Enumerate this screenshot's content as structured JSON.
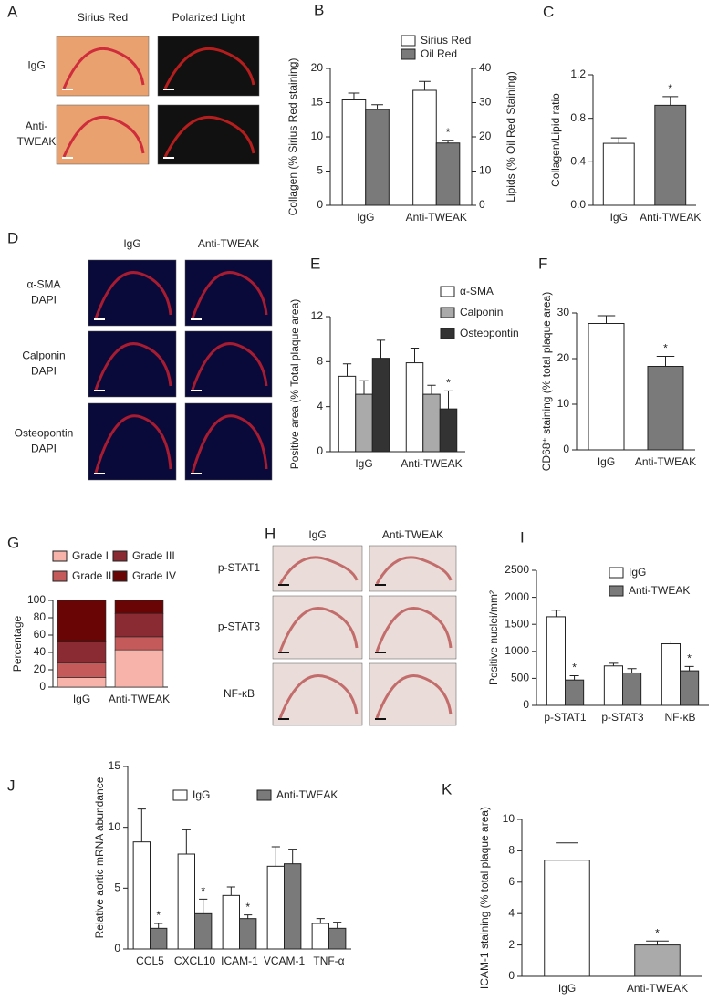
{
  "panel_letters": [
    "A",
    "B",
    "C",
    "D",
    "E",
    "F",
    "G",
    "H",
    "I",
    "J",
    "K"
  ],
  "micrographs_a": {
    "columns": [
      "Sirius  Red",
      "Polarized Light"
    ],
    "rows": [
      [
        "IgG"
      ],
      [
        "Anti-",
        "TWEAK"
      ]
    ]
  },
  "micrographs_d": {
    "columns": [
      "IgG",
      "Anti-TWEAK"
    ],
    "rows": [
      [
        "α-SMA",
        "DAPI"
      ],
      [
        "Calponin",
        "DAPI"
      ],
      [
        "Osteopontin",
        "DAPI"
      ]
    ]
  },
  "micrographs_h": {
    "columns": [
      "IgG",
      "Anti-TWEAK"
    ],
    "rows": [
      "p-STAT1",
      "p-STAT3",
      "NF-κB"
    ]
  },
  "chart_data": [
    {
      "type": "bar",
      "y_label": "Collagen (% Sirius Red staining)",
      "y2_label": "Lipids (% Oil Red Staining)",
      "categories": [
        "IgG",
        "Anti-TWEAK"
      ],
      "series": [
        {
          "name": "Sirius Red",
          "color": "#ffffff",
          "values": [
            15.4,
            16.8
          ],
          "errors": [
            1.0,
            1.3
          ]
        },
        {
          "name": "Oil Red",
          "color": "#7a7a7a",
          "axis": "y2",
          "values": [
            28,
            18.2
          ],
          "errors": [
            1.4,
            0.8
          ]
        }
      ],
      "ylim": [
        0,
        20
      ],
      "yticks": [
        0,
        5,
        10,
        15,
        20
      ],
      "y2lim": [
        0,
        40
      ],
      "y2ticks": [
        0,
        10,
        20,
        30,
        40
      ],
      "annotations": [
        {
          "text": "*",
          "series": 1,
          "index": 1
        }
      ]
    },
    {
      "type": "bar",
      "y_label": "Collagen/Lipid ratio",
      "categories": [
        "IgG",
        "Anti-TWEAK"
      ],
      "values": [
        0.57,
        0.92
      ],
      "errors": [
        0.05,
        0.08
      ],
      "colors": [
        "#ffffff",
        "#7a7a7a"
      ],
      "ylim": [
        0,
        1.2
      ],
      "yticks": [
        {
          "value": 0,
          "label": "0.0"
        },
        0.4,
        0.8,
        1.2
      ],
      "annotations": [
        {
          "text": "*",
          "index": 1
        }
      ]
    },
    {
      "type": "bar",
      "y_label": "Positive area (% Total plaque area)",
      "categories": [
        "IgG",
        "Anti-TWEAK"
      ],
      "series": [
        {
          "name": "α-SMA",
          "color": "#ffffff",
          "values": [
            6.7,
            7.9
          ],
          "errors": [
            1.1,
            1.3
          ]
        },
        {
          "name": "Calponin",
          "color": "#aaaaaa",
          "values": [
            5.1,
            5.1
          ],
          "errors": [
            1.2,
            0.8
          ]
        },
        {
          "name": "Osteopontin",
          "color": "#333333",
          "values": [
            8.3,
            3.8
          ],
          "errors": [
            1.6,
            1.6
          ]
        }
      ],
      "ylim": [
        0,
        12
      ],
      "yticks": [
        0,
        4,
        8,
        12
      ],
      "annotations": [
        {
          "text": "*",
          "series": 2,
          "index": 1
        }
      ]
    },
    {
      "type": "bar",
      "y_label": "CD68⁺ staining (% total plaque area)",
      "categories": [
        "IgG",
        "Anti-TWEAK"
      ],
      "values": [
        27.7,
        18.3
      ],
      "errors": [
        1.7,
        2.2
      ],
      "colors": [
        "#ffffff",
        "#7a7a7a"
      ],
      "ylim": [
        0,
        30
      ],
      "yticks": [
        0,
        10,
        20,
        30
      ],
      "annotations": [
        {
          "text": "*",
          "index": 1
        }
      ]
    },
    {
      "type": "stacked_bar",
      "y_label": "Percentage",
      "categories": [
        "IgG",
        "Anti-TWEAK"
      ],
      "series": [
        {
          "name": "Grade I",
          "color": "#f7b2aa",
          "values": [
            11,
            43
          ]
        },
        {
          "name": "Grade II",
          "color": "#c45a5a",
          "values": [
            17,
            15
          ]
        },
        {
          "name": "Grade III",
          "color": "#8a2a33",
          "values": [
            24,
            27
          ]
        },
        {
          "name": "Grade IV",
          "color": "#6a0505",
          "values": [
            48,
            15
          ]
        }
      ],
      "ylim": [
        0,
        100
      ],
      "yticks": [
        0,
        20,
        40,
        60,
        80,
        100
      ]
    },
    {
      "type": "bar",
      "y_label": "Positive nuclei/mm²",
      "categories": [
        "p-STAT1",
        "p-STAT3",
        "NF-κB"
      ],
      "series": [
        {
          "name": "IgG",
          "color": "#ffffff",
          "values": [
            1640,
            730,
            1140
          ],
          "errors": [
            120,
            50,
            50
          ]
        },
        {
          "name": "Anti-TWEAK",
          "color": "#7a7a7a",
          "values": [
            470,
            600,
            640
          ],
          "errors": [
            80,
            80,
            80
          ]
        }
      ],
      "ylim": [
        0,
        2500
      ],
      "yticks": [
        0,
        500,
        1000,
        1500,
        2000,
        2500
      ],
      "annotations": [
        {
          "text": "*",
          "series": 1,
          "index": 0
        },
        {
          "text": "*",
          "series": 1,
          "index": 2
        }
      ]
    },
    {
      "type": "bar",
      "y_label": "Relative aortic mRNA abundance",
      "categories": [
        "CCL5",
        "CXCL10",
        "ICAM-1",
        "VCAM-1",
        "TNF-α"
      ],
      "series": [
        {
          "name": "IgG",
          "color": "#ffffff",
          "values": [
            8.8,
            7.8,
            4.4,
            6.8,
            2.1
          ],
          "errors": [
            2.7,
            2.0,
            0.7,
            1.6,
            0.4
          ]
        },
        {
          "name": "Anti-TWEAK",
          "color": "#7a7a7a",
          "values": [
            1.7,
            2.9,
            2.5,
            7.0,
            1.7
          ],
          "errors": [
            0.4,
            1.2,
            0.3,
            1.2,
            0.5
          ]
        }
      ],
      "ylim": [
        0,
        15
      ],
      "yticks": [
        0,
        5,
        10,
        15
      ],
      "annotations": [
        {
          "text": "*",
          "series": 1,
          "index": 0
        },
        {
          "text": "*",
          "series": 1,
          "index": 1
        },
        {
          "text": "*",
          "series": 1,
          "index": 2
        }
      ]
    },
    {
      "type": "bar",
      "y_label": "ICAM-1 staining (% total plaque area)",
      "categories": [
        "IgG",
        "Anti-TWEAK"
      ],
      "values": [
        7.4,
        2.0
      ],
      "errors": [
        1.1,
        0.25
      ],
      "colors": [
        "#ffffff",
        "#aaaaaa"
      ],
      "ylim": [
        0,
        10
      ],
      "yticks": [
        0,
        2,
        4,
        6,
        8,
        10
      ],
      "annotations": [
        {
          "text": "*",
          "index": 1
        }
      ]
    }
  ]
}
